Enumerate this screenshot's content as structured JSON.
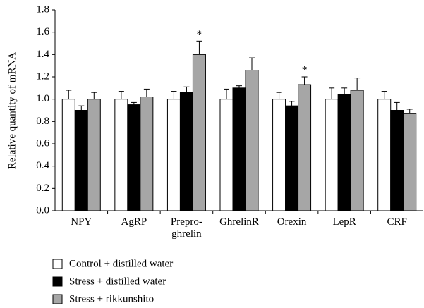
{
  "chart_data": {
    "type": "bar",
    "y_label": "Relative quantity of mRNA",
    "categories": [
      "NPY",
      "AgRP",
      "Prepro-\nghrelin",
      "GhrelinR",
      "Orexin",
      "LepR",
      "CRF"
    ],
    "series": [
      {
        "name": "Control + distilled water",
        "color": "#ffffff",
        "values": [
          1.0,
          1.0,
          1.0,
          1.0,
          1.0,
          1.0,
          1.0
        ],
        "errors": [
          0.08,
          0.07,
          0.07,
          0.09,
          0.06,
          0.1,
          0.07
        ]
      },
      {
        "name": "Stress + distilled water",
        "color": "#000000",
        "values": [
          0.9,
          0.95,
          1.06,
          1.1,
          0.94,
          1.04,
          0.9
        ],
        "errors": [
          0.04,
          0.02,
          0.05,
          0.02,
          0.04,
          0.06,
          0.07
        ]
      },
      {
        "name": "Stress + rikkunshito",
        "color": "#a6a6a6",
        "values": [
          1.0,
          1.02,
          1.4,
          1.26,
          1.13,
          1.08,
          0.87
        ],
        "errors": [
          0.06,
          0.07,
          0.12,
          0.11,
          0.07,
          0.11,
          0.04
        ],
        "value_annotations": [
          null,
          null,
          "*",
          null,
          "*",
          null,
          null
        ]
      }
    ],
    "ylim": [
      0,
      1.8
    ],
    "yticks": [
      {
        "value": 0,
        "label": "0.0"
      },
      {
        "value": 0.2,
        "label": "0.2"
      },
      {
        "value": 0.4,
        "label": "0.4"
      },
      {
        "value": 0.6,
        "label": "0.6"
      },
      {
        "value": 0.8,
        "label": "0.8"
      },
      {
        "value": 1,
        "label": "1.0"
      },
      {
        "value": 1.2,
        "label": "1.2"
      },
      {
        "value": 1.4,
        "label": "1.4"
      },
      {
        "value": 1.6,
        "label": "1.6"
      },
      {
        "value": 1.8,
        "label": "1.8"
      }
    ],
    "grid": false
  }
}
